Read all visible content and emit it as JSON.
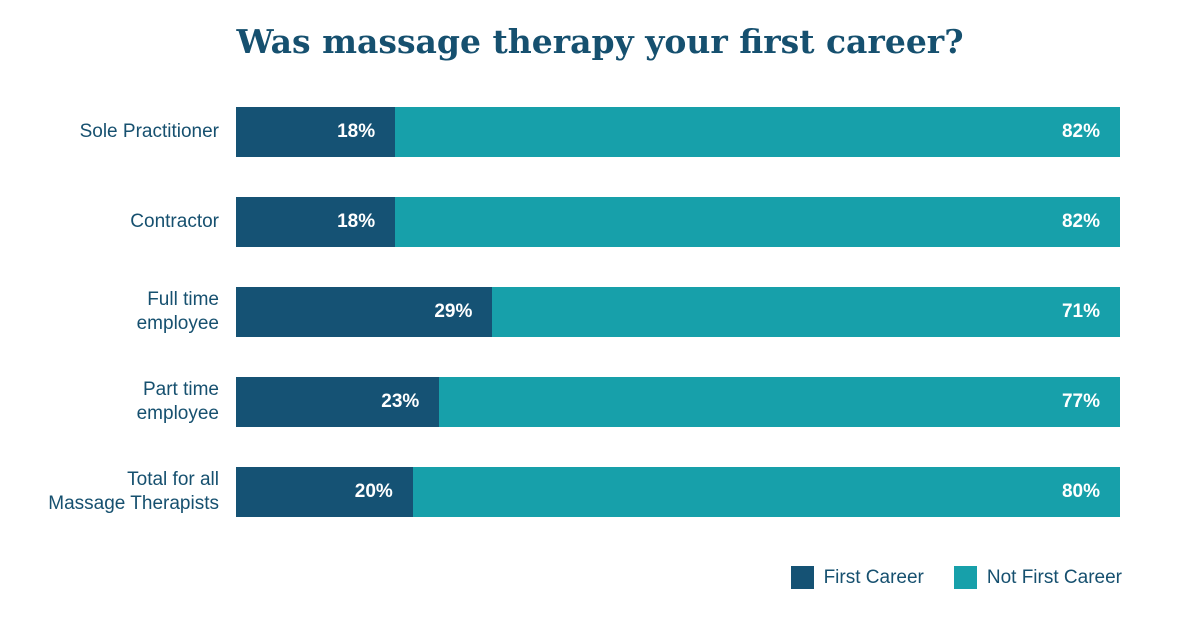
{
  "chart_data": {
    "type": "bar",
    "orientation": "horizontal",
    "stacked": true,
    "title": "Was massage therapy your first career?",
    "categories": [
      "Sole Practitioner",
      "Contractor",
      "Full time\nemployee",
      "Part time\nemployee",
      "Total for all\nMassage Therapists"
    ],
    "series": [
      {
        "name": "First Career",
        "color": "#155274",
        "values": [
          18,
          18,
          29,
          23,
          20
        ],
        "labels": [
          "18%",
          "18%",
          "29%",
          "23%",
          "20%"
        ]
      },
      {
        "name": "Not First Career",
        "color": "#17a0aa",
        "values": [
          82,
          82,
          71,
          77,
          80
        ],
        "labels": [
          "82%",
          "82%",
          "71%",
          "77%",
          "80%"
        ]
      }
    ],
    "xlim": [
      0,
      100
    ],
    "grid": false,
    "legend_position": "bottom-right"
  }
}
